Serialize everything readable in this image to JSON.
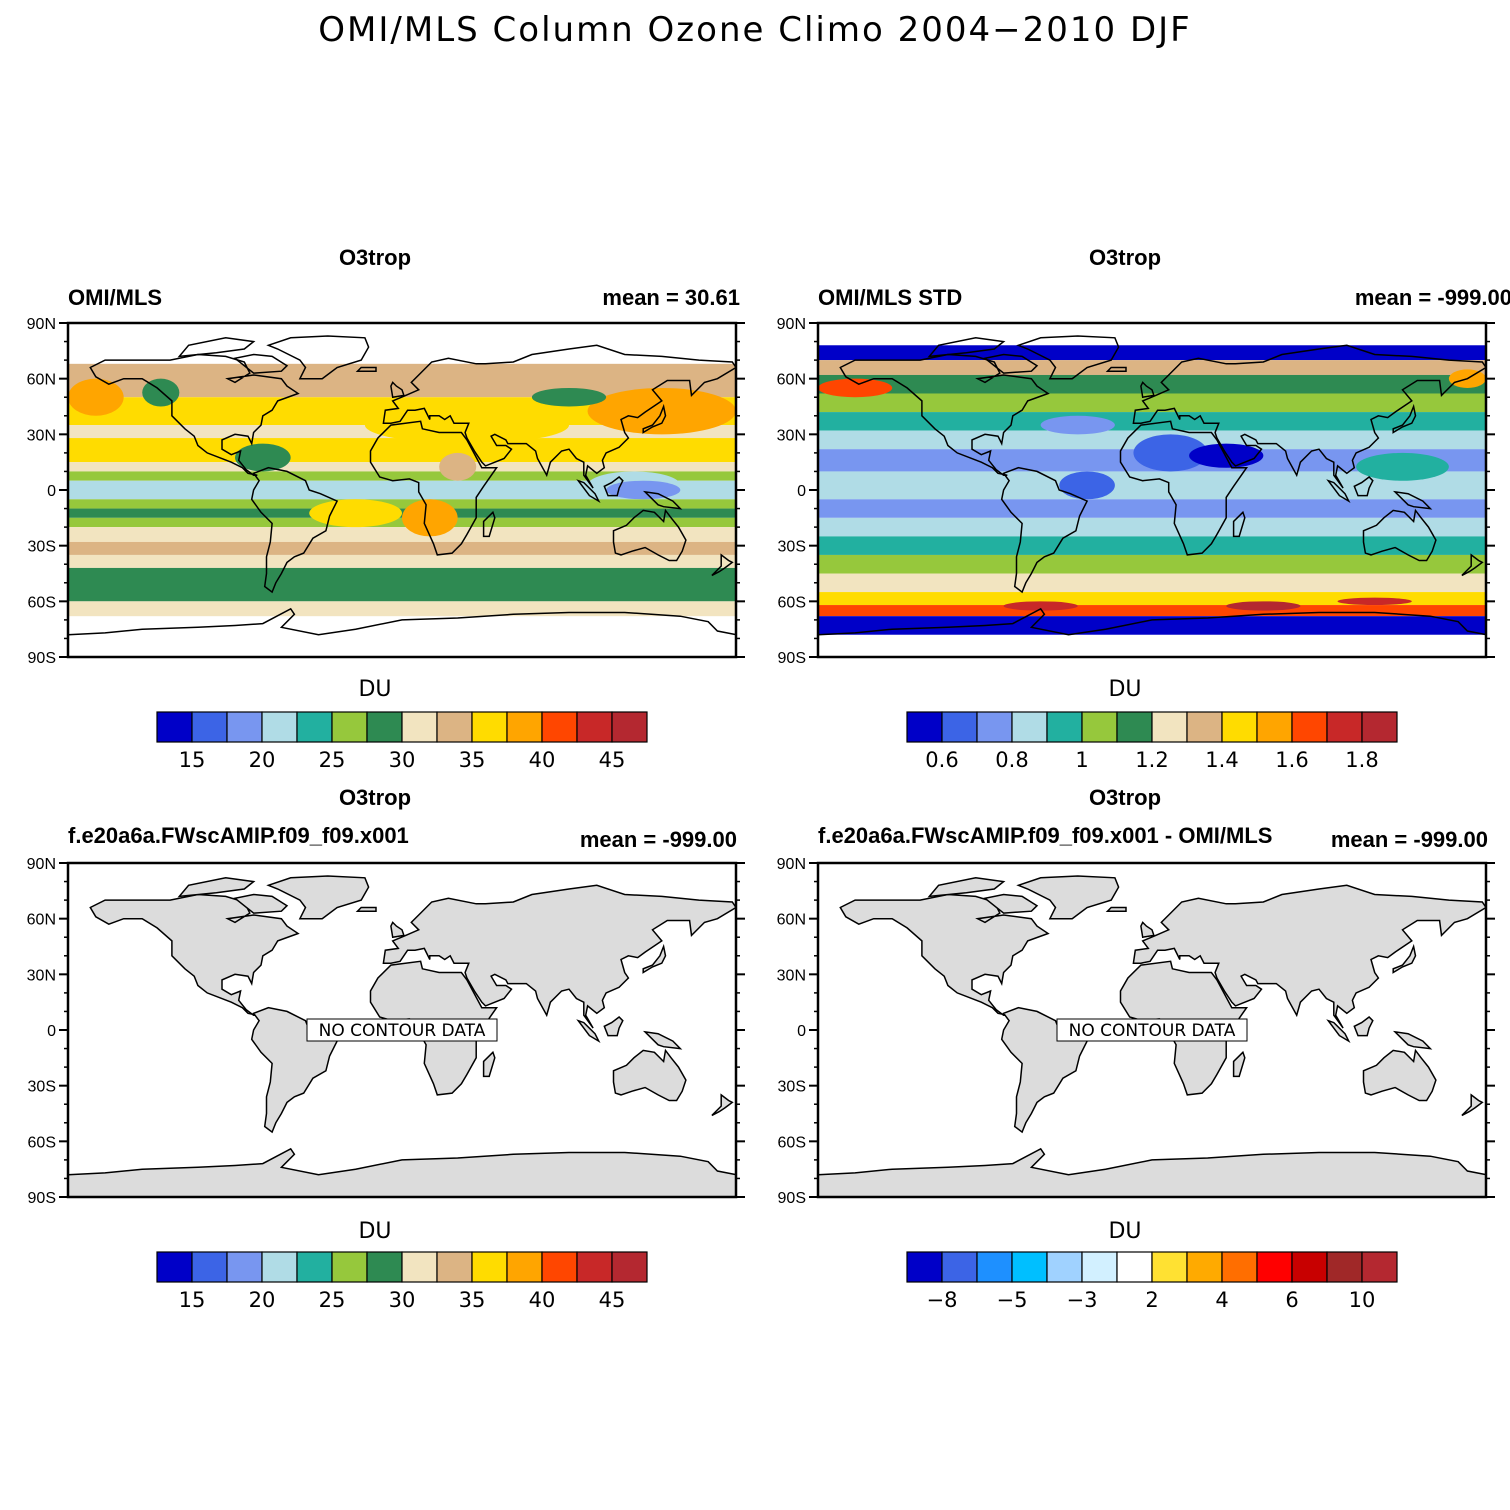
{
  "figure": {
    "title": "OMI/MLS Column Ozone Climo 2004−2010 DJF"
  },
  "axes": {
    "lat_labels": [
      "90N",
      "60N",
      "30N",
      "0",
      "30S",
      "60S",
      "90S"
    ]
  },
  "panels": [
    {
      "id": "p1",
      "title": "O3trop",
      "left_string": "OMI/MLS",
      "right_string": "mean =  30.61",
      "colorbar": {
        "title": "DU",
        "colors": [
          "#0000c8",
          "#3c64e6",
          "#7896f0",
          "#b0dce6",
          "#22b0a0",
          "#96c83c",
          "#2e8a52",
          "#f2e4c0",
          "#dcb484",
          "#ffdc00",
          "#ffa500",
          "#ff4600",
          "#c82828",
          "#b42830"
        ],
        "tick_labels": [
          "15",
          "20",
          "25",
          "30",
          "35",
          "40",
          "45"
        ]
      },
      "has_data": true
    },
    {
      "id": "p2",
      "title": "O3trop",
      "left_string": "OMI/MLS STD",
      "right_string": "mean = -999.00",
      "colorbar": {
        "title": "DU",
        "colors": [
          "#0000c8",
          "#3c64e6",
          "#7896f0",
          "#b0dce6",
          "#22b0a0",
          "#96c83c",
          "#2e8a52",
          "#f2e4c0",
          "#dcb484",
          "#ffdc00",
          "#ffa500",
          "#ff4600",
          "#c82828",
          "#b42830"
        ],
        "tick_labels": [
          "0.6",
          "0.8",
          "1",
          "1.2",
          "1.4",
          "1.6",
          "1.8"
        ]
      },
      "has_data": true
    },
    {
      "id": "p3",
      "title": "O3trop",
      "left_string": "f.e20a6a.FWscAMIP.f09_f09.x001",
      "right_string": "mean = -999.00",
      "no_data_label": "NO CONTOUR DATA",
      "colorbar": {
        "title": "DU",
        "colors": [
          "#0000c8",
          "#3c64e6",
          "#7896f0",
          "#b0dce6",
          "#22b0a0",
          "#96c83c",
          "#2e8a52",
          "#f2e4c0",
          "#dcb484",
          "#ffdc00",
          "#ffa500",
          "#ff4600",
          "#c82828",
          "#b42830"
        ],
        "tick_labels": [
          "15",
          "20",
          "25",
          "30",
          "35",
          "40",
          "45"
        ]
      },
      "has_data": false
    },
    {
      "id": "p4",
      "title": "O3trop",
      "left_string": "f.e20a6a.FWscAMIP.f09_f09.x001 - OMI/MLS",
      "right_string": "mean = -999.00",
      "no_data_label": "NO CONTOUR DATA",
      "colorbar": {
        "title": "DU",
        "colors": [
          "#0000c8",
          "#3c64e6",
          "#1e90ff",
          "#00bfff",
          "#a0d2ff",
          "#d2f0ff",
          "#ffffff",
          "#ffe132",
          "#ffaa00",
          "#ff6e00",
          "#ff0000",
          "#c80000",
          "#a02828",
          "#b42830"
        ],
        "tick_labels": [
          "−8",
          "−5",
          "−3",
          "2",
          "4",
          "6",
          "10"
        ]
      },
      "has_data": false
    }
  ]
}
